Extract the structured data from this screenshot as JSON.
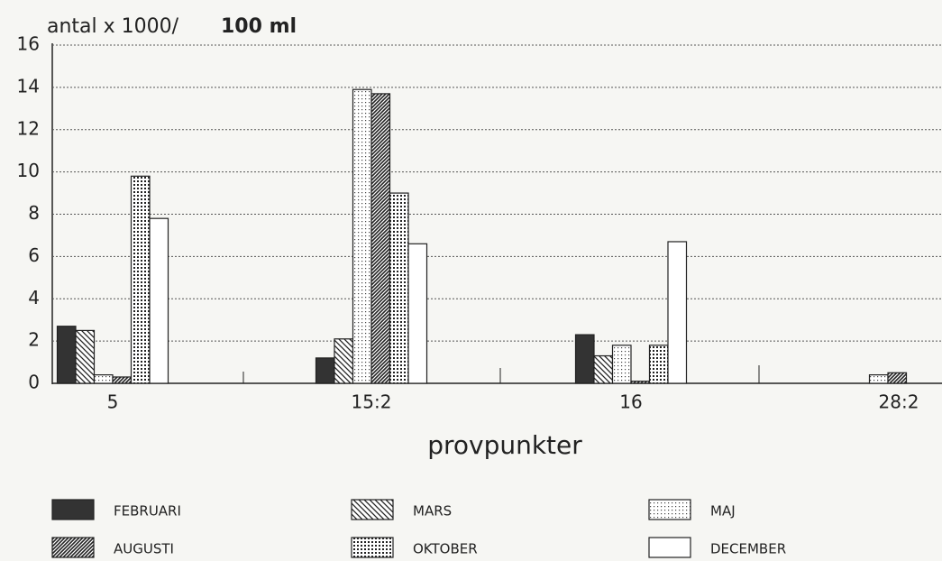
{
  "chart_data": {
    "type": "bar",
    "y_label": "antal x 1000/",
    "y_label_unit": "100 ml",
    "x_label": "provpunkter",
    "categories": [
      "5",
      "15:2",
      "16",
      "28:2"
    ],
    "series": [
      {
        "name": "FEBRUARI",
        "color": "#333333",
        "pattern": "solid",
        "values": [
          2.7,
          1.2,
          2.3,
          0
        ]
      },
      {
        "name": "MARS",
        "color": "#333333",
        "pattern": "backhatch",
        "values": [
          2.5,
          2.1,
          1.3,
          0
        ]
      },
      {
        "name": "MAJ",
        "color": "#333333",
        "pattern": "dots",
        "values": [
          0.4,
          13.9,
          1.8,
          0.4
        ]
      },
      {
        "name": "AUGUSTI",
        "color": "#333333",
        "pattern": "hatch",
        "values": [
          0.3,
          13.7,
          0.1,
          0.5
        ]
      },
      {
        "name": "OKTOBER",
        "color": "#333333",
        "pattern": "densedots",
        "values": [
          9.8,
          9.0,
          1.8,
          0
        ]
      },
      {
        "name": "DECEMBER",
        "color": "#333333",
        "pattern": "none",
        "values": [
          7.8,
          6.6,
          6.7,
          0
        ]
      }
    ],
    "ylim": [
      0,
      16
    ],
    "yticks": [
      0,
      2,
      4,
      6,
      8,
      10,
      12,
      14,
      16
    ],
    "grid": true
  }
}
